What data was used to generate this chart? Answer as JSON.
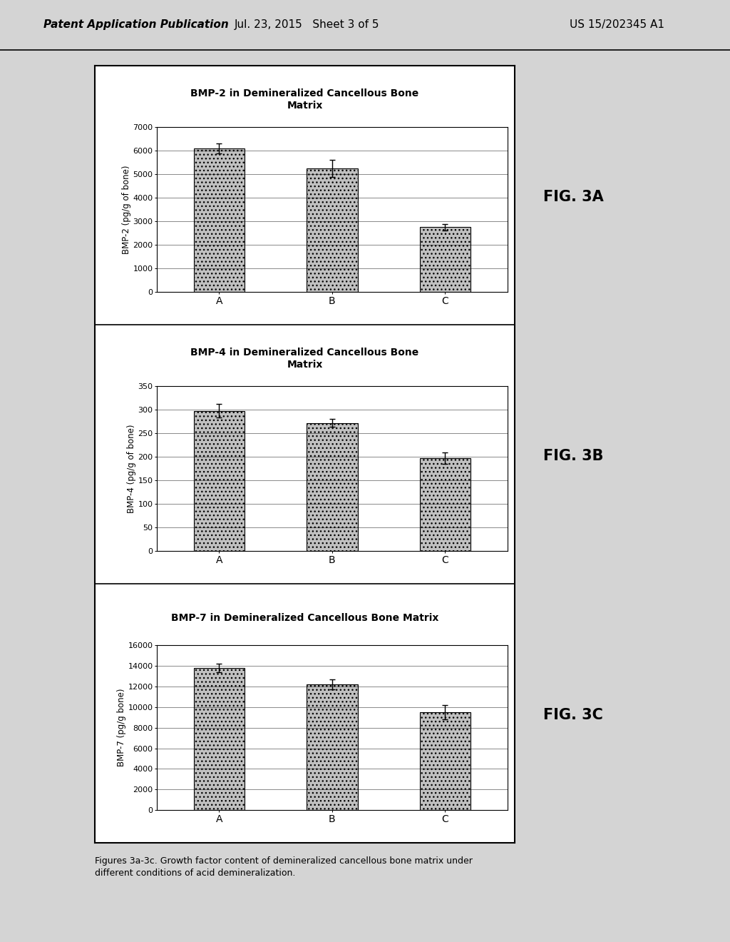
{
  "header_left": "Patent Application Publication",
  "header_center": "Jul. 23, 2015   Sheet 3 of 5",
  "header_right": "US 15/202345 A1",
  "fig_labels": [
    "FIG. 3A",
    "FIG. 3B",
    "FIG. 3C"
  ],
  "caption": "Figures 3a-3c. Growth factor content of demineralized cancellous bone matrix under\ndifferent conditions of acid demineralization.",
  "charts": [
    {
      "title": "BMP-2 in Demineralized Cancellous Bone\nMatrix",
      "ylabel": "BMP-2 (pg/g of bone)",
      "categories": [
        "A",
        "B",
        "C"
      ],
      "values": [
        6100,
        5250,
        2750
      ],
      "errors": [
        200,
        350,
        150
      ],
      "ylim": [
        0,
        7000
      ],
      "yticks": [
        0,
        1000,
        2000,
        3000,
        4000,
        5000,
        6000,
        7000
      ]
    },
    {
      "title": "BMP-4 in Demineralized Cancellous Bone\nMatrix",
      "ylabel": "BMP-4 (pg/g of bone)",
      "categories": [
        "A",
        "B",
        "C"
      ],
      "values": [
        298,
        272,
        197
      ],
      "errors": [
        15,
        8,
        12
      ],
      "ylim": [
        0,
        350
      ],
      "yticks": [
        0,
        50,
        100,
        150,
        200,
        250,
        300,
        350
      ]
    },
    {
      "title": "BMP-7 in Demineralized Cancellous Bone Matrix",
      "ylabel": "BMP-7 (pg/g bone)",
      "categories": [
        "A",
        "B",
        "C"
      ],
      "values": [
        13800,
        12200,
        9500
      ],
      "errors": [
        400,
        500,
        700
      ],
      "ylim": [
        0,
        16000
      ],
      "yticks": [
        0,
        2000,
        4000,
        6000,
        8000,
        10000,
        12000,
        14000,
        16000
      ]
    }
  ],
  "bar_color": "#c0c0c0",
  "bar_edgecolor": "#000000",
  "figure_bg": "#d4d4d4",
  "box_bg": "#ffffff"
}
